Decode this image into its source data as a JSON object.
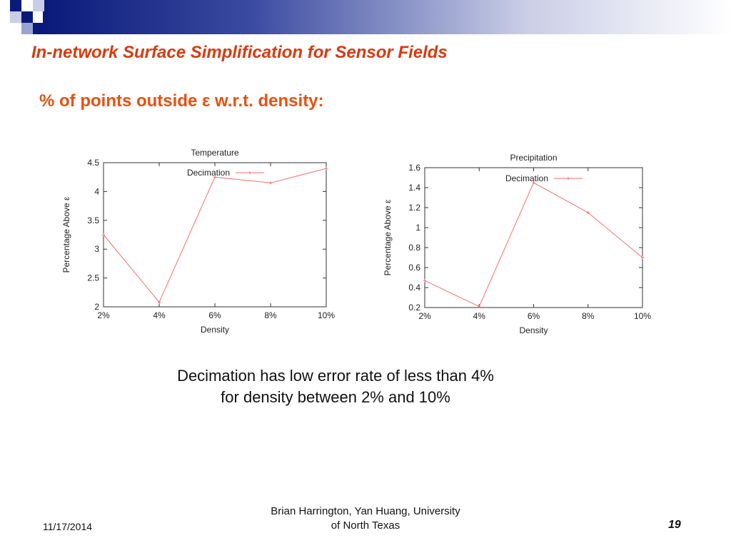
{
  "slide": {
    "title": "In-network Surface Simplification for Sensor Fields",
    "subtitle": "% of points outside ε w.r.t. density:",
    "caption_line1": "Decimation has low error rate of less than 4%",
    "caption_line2": "for density between 2% and 10%",
    "footer_date": "11/17/2014",
    "footer_author_line1": "Brian Harrington, Yan Huang, University",
    "footer_author_line2": "of North Texas",
    "page_number": "19",
    "colors": {
      "title": "#d93a0e",
      "subtitle": "#e8500e",
      "series_line": "#ff6b6b",
      "header_gradient_start": "#0a1a7a"
    }
  },
  "chart_data": [
    {
      "type": "line",
      "title": "Temperature",
      "xlabel": "Density",
      "ylabel": "Percentage Above ε",
      "categories": [
        "2%",
        "4%",
        "6%",
        "8%",
        "10%"
      ],
      "series": [
        {
          "name": "Decimation",
          "values": [
            3.25,
            2.08,
            4.25,
            4.15,
            4.4
          ]
        }
      ],
      "ylim": [
        2,
        4.5
      ],
      "yticks": [
        "2",
        "2.5",
        "3",
        "3.5",
        "4",
        "4.5"
      ],
      "legend": "top-right"
    },
    {
      "type": "line",
      "title": "Precipitation",
      "xlabel": "Density",
      "ylabel": "Percentage Above ε",
      "categories": [
        "2%",
        "4%",
        "6%",
        "8%",
        "10%"
      ],
      "series": [
        {
          "name": "Decimation",
          "values": [
            0.47,
            0.21,
            1.45,
            1.15,
            0.7
          ]
        }
      ],
      "ylim": [
        0.2,
        1.6
      ],
      "yticks": [
        "0.2",
        "0.4",
        "0.6",
        "0.8",
        "1",
        "1.2",
        "1.4",
        "1.6"
      ],
      "legend": "top-right"
    }
  ]
}
